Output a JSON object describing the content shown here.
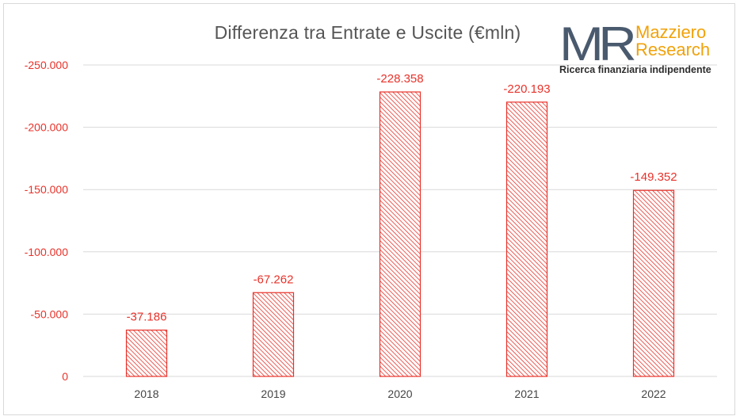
{
  "chart_data": {
    "type": "bar",
    "title": "Differenza tra Entrate e Uscite (€mln)",
    "categories": [
      "2018",
      "2019",
      "2020",
      "2021",
      "2022"
    ],
    "values": [
      -37186,
      -67262,
      -228358,
      -220193,
      -149352
    ],
    "value_labels": [
      "-37.186",
      "-67.262",
      "-228.358",
      "-220.193",
      "-149.352"
    ],
    "y_ticks": [
      {
        "value": 0,
        "label": "0"
      },
      {
        "value": -50000,
        "label": "-50.000"
      },
      {
        "value": -100000,
        "label": "-100.000"
      },
      {
        "value": -150000,
        "label": "-150.000"
      },
      {
        "value": -200000,
        "label": "-200.000"
      },
      {
        "value": -250000,
        "label": "-250.000"
      }
    ],
    "ylim": [
      0,
      -250000
    ],
    "y_axis_inverted": true,
    "grid": true,
    "bar_fill": "diagonal-hatch",
    "colors": {
      "bar": "#e8322a",
      "tick_label_y": "#e8322a",
      "data_label": "#e8322a",
      "tick_label_x": "#444444",
      "grid": "#d9d9d9"
    }
  },
  "logo": {
    "monogram": "MR",
    "name_line1": "Mazziero",
    "name_line2": "Research",
    "tagline": "Ricerca finanziaria indipendente",
    "colors": {
      "monogram": "#4a5a6e",
      "name": "#f0a20b"
    }
  }
}
